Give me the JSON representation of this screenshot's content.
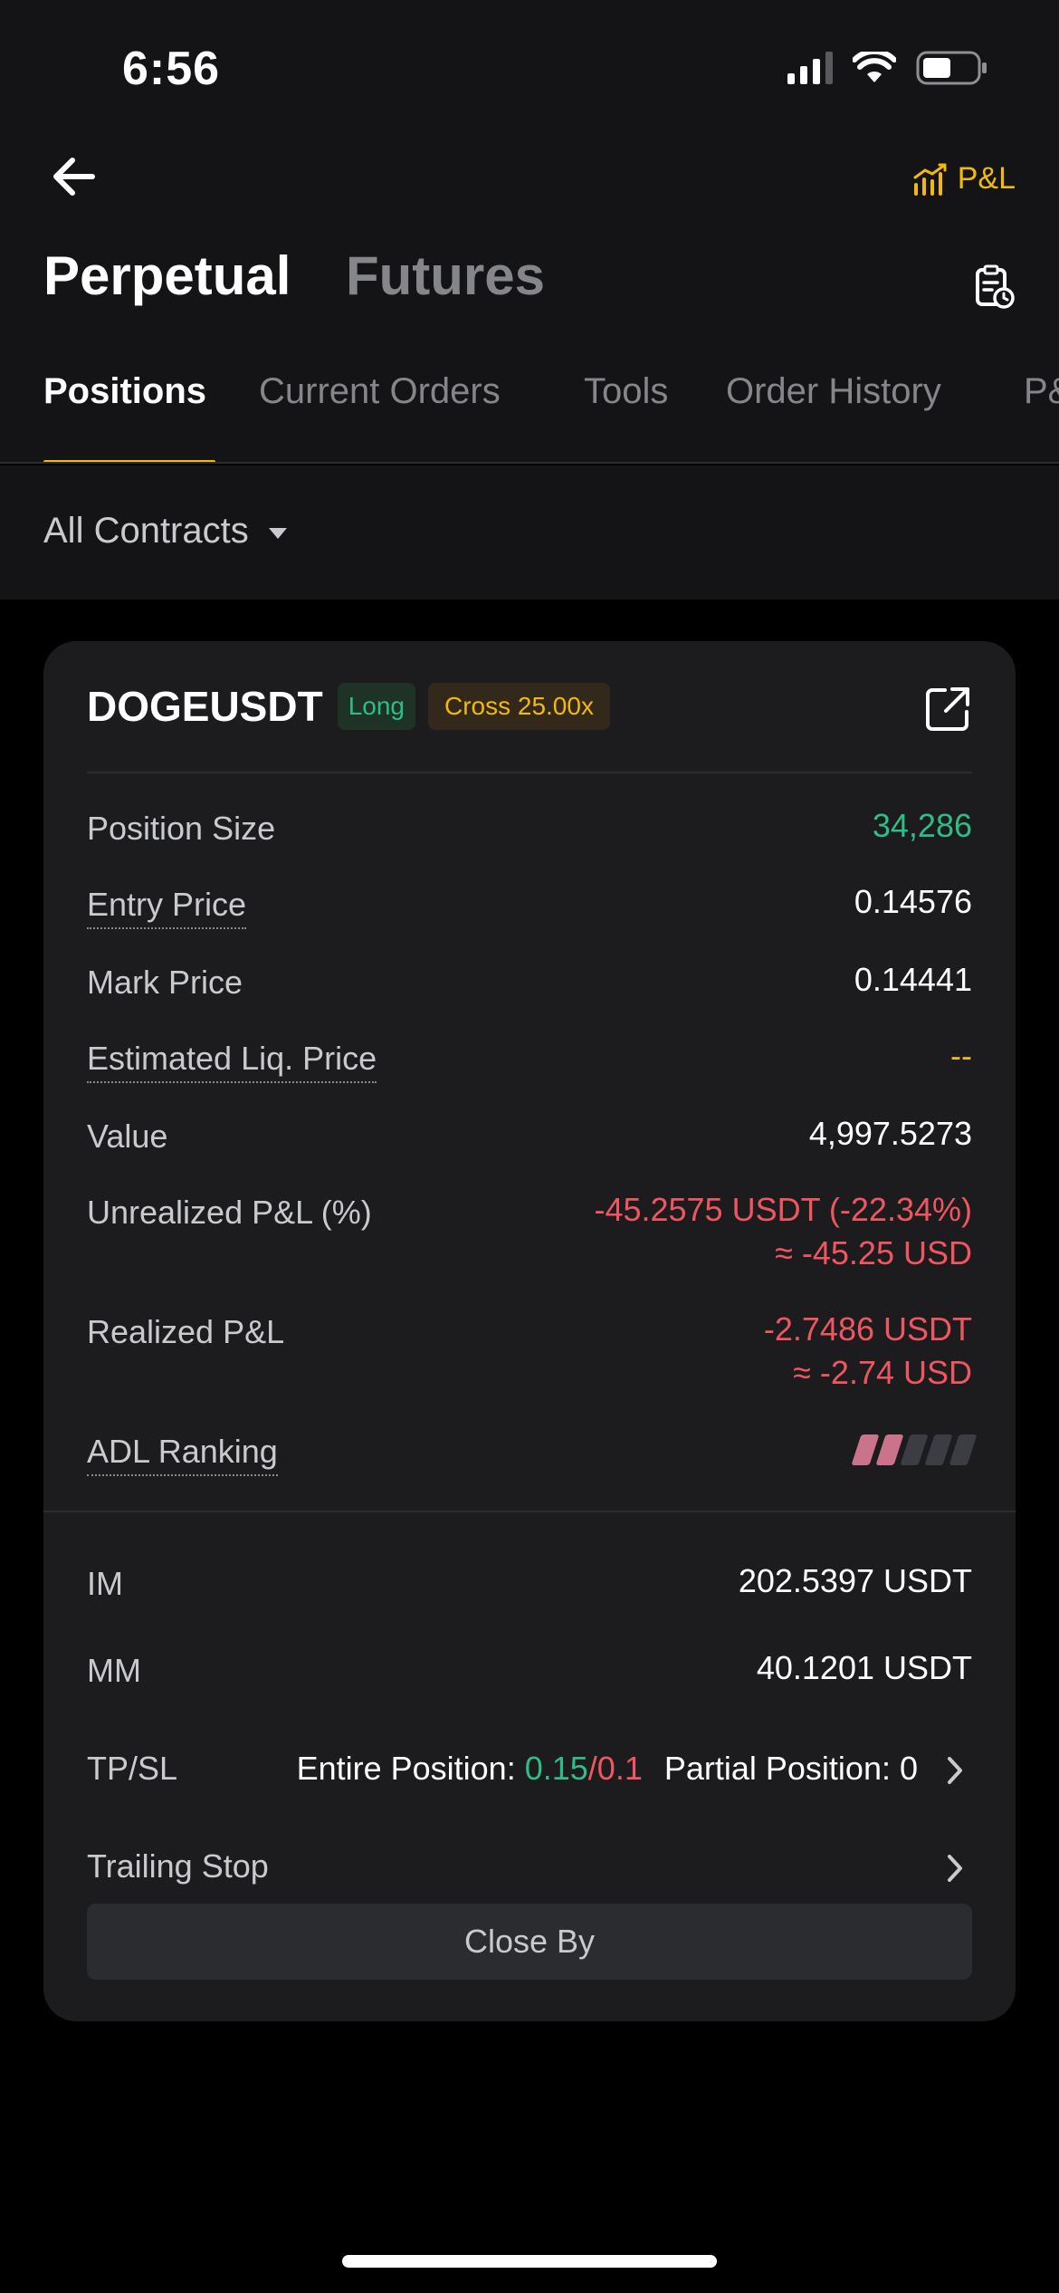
{
  "status_bar": {
    "time": "6:56"
  },
  "nav": {
    "pl_label": "P&L"
  },
  "title_tabs": {
    "active": "Perpetual",
    "inactive": "Futures"
  },
  "subtabs": [
    "Positions",
    "Current Orders",
    "Tools",
    "Order History",
    "P&"
  ],
  "filter": {
    "label": "All Contracts"
  },
  "position": {
    "symbol": "DOGEUSDT",
    "side_tag": "Long",
    "margin_tag": "Cross 25.00x",
    "rows": {
      "position_size": {
        "label": "Position Size",
        "value": "34,286"
      },
      "entry_price": {
        "label": "Entry Price",
        "value": "0.14576"
      },
      "mark_price": {
        "label": "Mark Price",
        "value": "0.14441"
      },
      "liq_price": {
        "label": "Estimated Liq. Price",
        "value": "--"
      },
      "value": {
        "label": "Value",
        "value": "4,997.5273"
      },
      "unrealized_pl": {
        "label": "Unrealized P&L (%)",
        "value": "-45.2575 USDT (-22.34%)",
        "usd": "≈ -45.25 USD"
      },
      "realized_pl": {
        "label": "Realized P&L",
        "value": "-2.7486 USDT",
        "usd": "≈ -2.74 USD"
      },
      "adl": {
        "label": "ADL Ranking",
        "level": 2,
        "max": 5
      },
      "im": {
        "label": "IM",
        "value": "202.5397 USDT"
      },
      "mm": {
        "label": "MM",
        "value": "40.1201 USDT"
      },
      "tpsl": {
        "label": "TP/SL",
        "entire_prefix": "Entire Position: ",
        "tp": "0.15",
        "separator": "/",
        "sl": "0.1",
        "partial": "Partial Position: 0"
      },
      "trailing_stop": {
        "label": "Trailing Stop"
      }
    },
    "close_by_label": "Close By"
  },
  "colors": {
    "accent": "#f0b90b",
    "positive": "#2ebd85",
    "negative": "#f6465d",
    "card_bg": "#1c1c1f"
  }
}
